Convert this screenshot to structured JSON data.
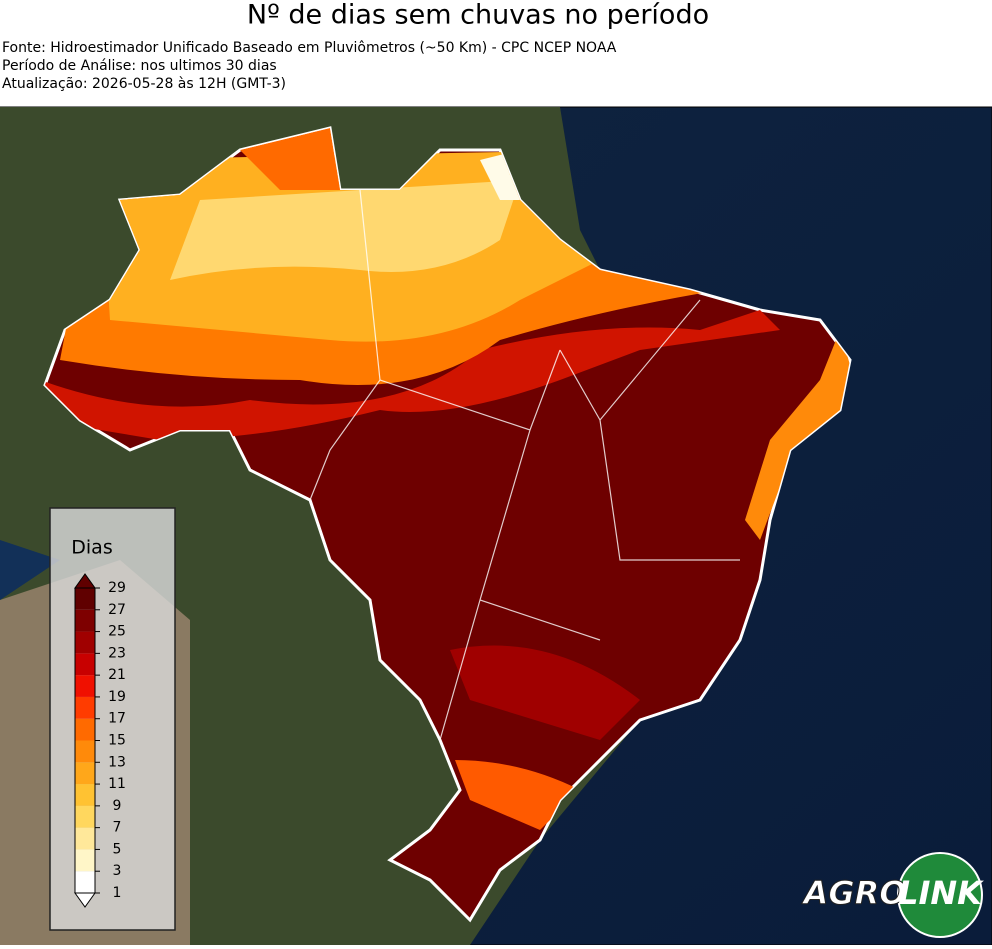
{
  "header": {
    "title": "Nº de dias sem chuvas no período",
    "source": "Fonte: Hidroestimador Unificado Baseado em Pluviômetros (~50 Km) - CPC NCEP NOAA",
    "period": "Período de Análise: nos ultimos 30 dias",
    "updated": "Atualização: 2026-05-28 às 12H (GMT-3)"
  },
  "legend": {
    "title": "Dias",
    "ticks": [
      1,
      3,
      5,
      7,
      9,
      11,
      13,
      15,
      17,
      19,
      21,
      23,
      25,
      27,
      29
    ],
    "colors": [
      "#ffffff",
      "#fff6c8",
      "#ffe89a",
      "#ffd75e",
      "#ffc232",
      "#ffa71a",
      "#ff8a0a",
      "#ff6a00",
      "#ff3c00",
      "#f01000",
      "#c80000",
      "#a00000",
      "#7e0000",
      "#600000"
    ]
  },
  "logo": {
    "part1": "AGRO",
    "part2": "LINK"
  }
}
